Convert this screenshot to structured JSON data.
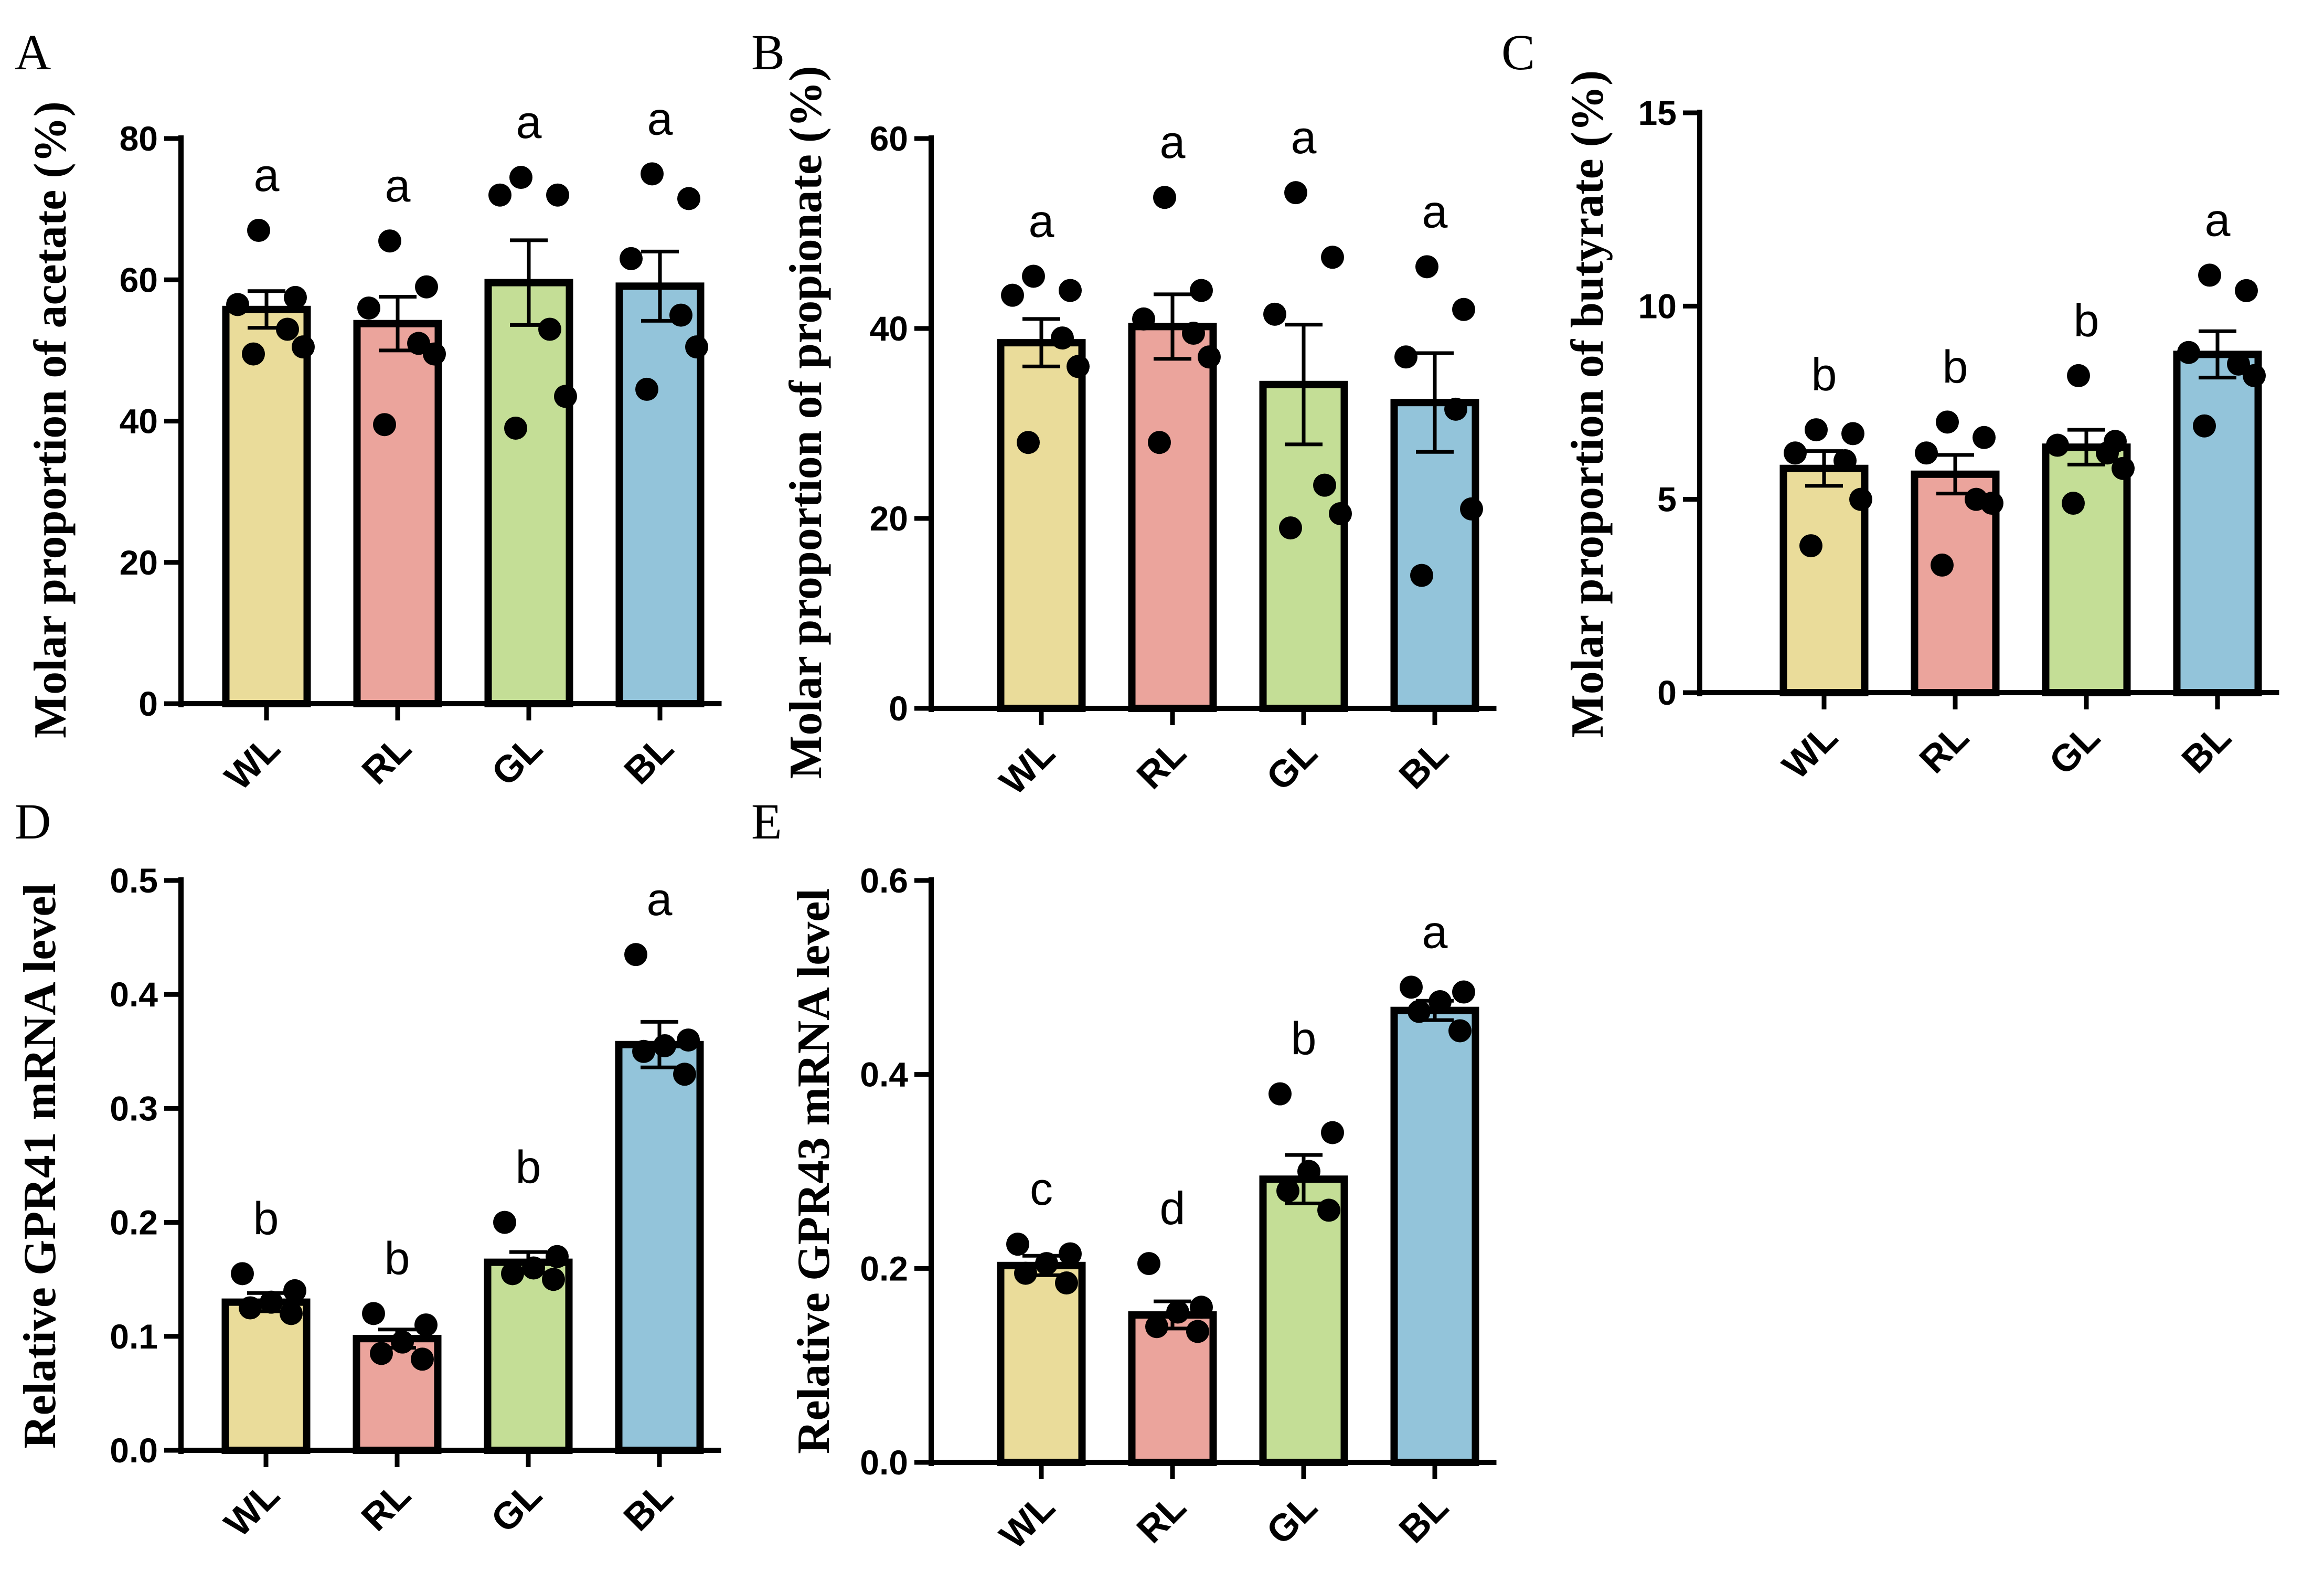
{
  "chart_data": [
    {
      "id": "A",
      "panel_letter": "A",
      "type": "bar",
      "title": "",
      "xlabel": "",
      "ylabel": "Molar proportion of acetate (%)",
      "ylim": [
        0,
        80
      ],
      "ticks": [
        0,
        20,
        40,
        60,
        80
      ],
      "tick_labels": [
        "0",
        "20",
        "40",
        "60",
        "80"
      ],
      "categories": [
        "WL",
        "RL",
        "GL",
        "BL"
      ],
      "colors": [
        "#EADC9A",
        "#EBA49C",
        "#C4DE96",
        "#93C4DA"
      ],
      "values": [
        55.8,
        53.8,
        59.6,
        59.1
      ],
      "errors": [
        2.6,
        3.8,
        6.0,
        4.9
      ],
      "points": [
        [
          67.0,
          57.5,
          56.5,
          53.0,
          50.5,
          49.5
        ],
        [
          65.5,
          59.0,
          56.0,
          51.0,
          49.5,
          39.5
        ],
        [
          74.5,
          72.0,
          72.0,
          53.0,
          43.5,
          39.0
        ],
        [
          75.0,
          71.5,
          63.0,
          55.0,
          50.5,
          44.5
        ]
      ],
      "significance": [
        "a",
        "a",
        "a",
        "a"
      ]
    },
    {
      "id": "B",
      "panel_letter": "B",
      "type": "bar",
      "title": "",
      "xlabel": "",
      "ylabel": "Molar proportion of propionate (%)",
      "ylim": [
        0,
        60
      ],
      "ticks": [
        0,
        20,
        40,
        60
      ],
      "tick_labels": [
        "0",
        "20",
        "40",
        "60"
      ],
      "categories": [
        "WL",
        "RL",
        "GL",
        "BL"
      ],
      "colors": [
        "#EADC9A",
        "#EBA49C",
        "#C4DE96",
        "#93C4DA"
      ],
      "values": [
        38.5,
        40.2,
        34.1,
        32.2
      ],
      "errors": [
        2.5,
        3.4,
        6.3,
        5.2
      ],
      "points": [
        [
          45.5,
          44.0,
          43.5,
          39.0,
          36.0,
          28.0
        ],
        [
          53.8,
          44.0,
          41.0,
          39.5,
          37.0,
          28.0
        ],
        [
          54.3,
          47.5,
          41.5,
          23.5,
          20.5,
          19.0
        ],
        [
          46.5,
          42.0,
          37.0,
          31.5,
          21.0,
          14.0
        ]
      ],
      "significance": [
        "a",
        "a",
        "a",
        "a"
      ]
    },
    {
      "id": "C",
      "panel_letter": "C",
      "type": "bar",
      "title": "",
      "xlabel": "",
      "ylabel": "Molar proportion of butyrate (%)",
      "ylim": [
        0,
        15
      ],
      "ticks": [
        0,
        5,
        10,
        15
      ],
      "tick_labels": [
        "0",
        "5",
        "10",
        "15"
      ],
      "categories": [
        "WL",
        "RL",
        "GL",
        "BL"
      ],
      "colors": [
        "#EADC9A",
        "#EBA49C",
        "#C4DE96",
        "#93C4DA"
      ],
      "values": [
        5.8,
        5.65,
        6.35,
        8.75
      ],
      "errors": [
        0.45,
        0.5,
        0.45,
        0.6
      ],
      "points": [
        [
          6.8,
          6.7,
          6.2,
          6.0,
          5.0,
          3.8
        ],
        [
          7.0,
          6.6,
          6.2,
          5.0,
          4.9,
          3.3
        ],
        [
          8.2,
          6.5,
          6.4,
          6.2,
          5.8,
          4.9
        ],
        [
          10.8,
          10.4,
          8.8,
          8.5,
          8.2,
          6.9
        ]
      ],
      "significance": [
        "b",
        "b",
        "b",
        "a"
      ]
    },
    {
      "id": "D",
      "panel_letter": "D",
      "type": "bar",
      "title": "",
      "xlabel": "",
      "ylabel": "Relative GPR41 mRNA level",
      "ylim": [
        0,
        0.5
      ],
      "ticks": [
        0,
        0.1,
        0.2,
        0.3,
        0.4,
        0.5
      ],
      "tick_labels": [
        "0.0",
        "0.1",
        "0.2",
        "0.3",
        "0.4",
        "0.5"
      ],
      "categories": [
        "WL",
        "RL",
        "GL",
        "BL"
      ],
      "colors": [
        "#EADC9A",
        "#EBA49C",
        "#C4DE96",
        "#93C4DA"
      ],
      "values": [
        0.13,
        0.098,
        0.165,
        0.356
      ],
      "errors": [
        0.008,
        0.008,
        0.009,
        0.02
      ],
      "points": [
        [
          0.155,
          0.14,
          0.13,
          0.125,
          0.12
        ],
        [
          0.12,
          0.11,
          0.095,
          0.085,
          0.08
        ],
        [
          0.2,
          0.17,
          0.16,
          0.155,
          0.15
        ],
        [
          0.435,
          0.36,
          0.355,
          0.35,
          0.33
        ]
      ],
      "significance": [
        "b",
        "b",
        "b",
        "a"
      ]
    },
    {
      "id": "E",
      "panel_letter": "E",
      "type": "bar",
      "title": "",
      "xlabel": "",
      "ylabel": "Relative GPR43 mRNA level",
      "ylim": [
        0,
        0.6
      ],
      "ticks": [
        0,
        0.2,
        0.4,
        0.6
      ],
      "tick_labels": [
        "0.0",
        "0.2",
        "0.4",
        "0.6"
      ],
      "categories": [
        "WL",
        "RL",
        "GL",
        "BL"
      ],
      "colors": [
        "#EADC9A",
        "#EBA49C",
        "#C4DE96",
        "#93C4DA"
      ],
      "values": [
        0.203,
        0.152,
        0.292,
        0.466
      ],
      "errors": [
        0.01,
        0.014,
        0.025,
        0.01
      ],
      "points": [
        [
          0.225,
          0.215,
          0.205,
          0.195,
          0.185
        ],
        [
          0.205,
          0.16,
          0.155,
          0.14,
          0.135
        ],
        [
          0.38,
          0.34,
          0.3,
          0.28,
          0.26
        ],
        [
          0.49,
          0.485,
          0.475,
          0.465,
          0.445
        ]
      ],
      "significance": [
        "c",
        "d",
        "b",
        "a"
      ]
    }
  ]
}
